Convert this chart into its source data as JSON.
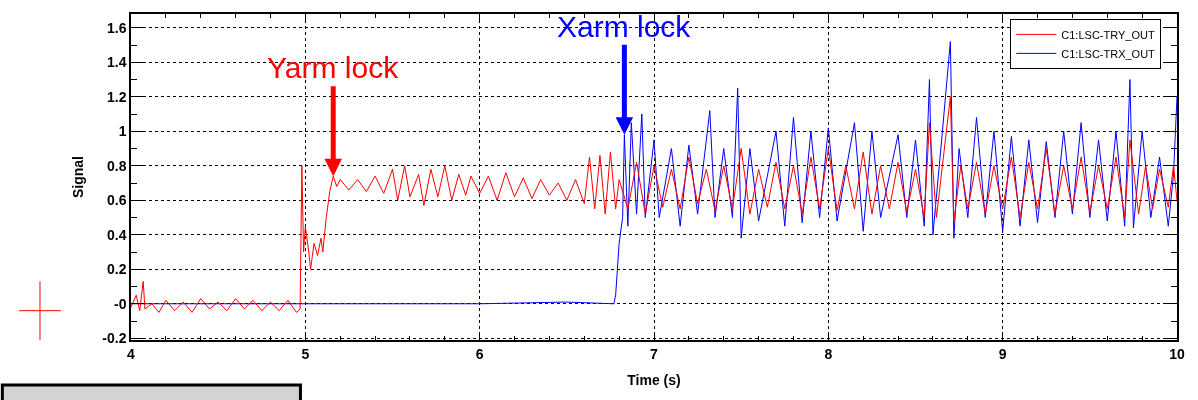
{
  "chart_data": {
    "type": "line",
    "xlabel": "Time (s)",
    "ylabel": "Signal",
    "xlim": [
      4,
      10
    ],
    "xticks": [
      4,
      5,
      6,
      7,
      8,
      9,
      10
    ],
    "ylim": [
      -0.21,
      1.68
    ],
    "yticks": [
      -0.2,
      {
        "value": 0,
        "label": "-0"
      },
      0.2,
      0.4,
      0.6,
      0.8,
      1,
      1.2,
      1.4,
      1.6
    ],
    "grid": true,
    "legend": "top right",
    "line_style": "solid",
    "marker": "none",
    "annotations": [
      {
        "text": "Yarm lock",
        "x": 5.16,
        "y": 0.74
      },
      {
        "text": "Xarm lock",
        "x": 6.83,
        "y": 0.98
      }
    ],
    "series": [
      {
        "name": "C1:LSC-TRY_OUT",
        "color": "#ff0000",
        "x": [
          4.0,
          4.03,
          4.05,
          4.07,
          4.08,
          4.12,
          4.16,
          4.2,
          4.25,
          4.3,
          4.35,
          4.4,
          4.45,
          4.5,
          4.55,
          4.6,
          4.65,
          4.7,
          4.75,
          4.8,
          4.85,
          4.9,
          4.95,
          4.97,
          4.98,
          4.99,
          5.0,
          5.02,
          5.03,
          5.05,
          5.07,
          5.09,
          5.1,
          5.12,
          5.14,
          5.16,
          5.18,
          5.2,
          5.25,
          5.3,
          5.35,
          5.4,
          5.45,
          5.5,
          5.53,
          5.57,
          5.6,
          5.65,
          5.68,
          5.72,
          5.76,
          5.8,
          5.84,
          5.88,
          5.92,
          5.95,
          6.0,
          6.05,
          6.1,
          6.15,
          6.2,
          6.25,
          6.3,
          6.35,
          6.4,
          6.45,
          6.5,
          6.55,
          6.6,
          6.63,
          6.66,
          6.69,
          6.72,
          6.75,
          6.78,
          6.8,
          6.85,
          6.9,
          6.95,
          7.0,
          7.05,
          7.1,
          7.15,
          7.2,
          7.25,
          7.3,
          7.35,
          7.4,
          7.45,
          7.5,
          7.55,
          7.6,
          7.65,
          7.7,
          7.75,
          7.8,
          7.85,
          7.9,
          7.95,
          8.0,
          8.05,
          8.1,
          8.15,
          8.2,
          8.25,
          8.3,
          8.35,
          8.4,
          8.45,
          8.5,
          8.55,
          8.58,
          8.62,
          8.66,
          8.7,
          8.72,
          8.76,
          8.8,
          8.85,
          8.9,
          8.95,
          9.0,
          9.05,
          9.1,
          9.15,
          9.2,
          9.25,
          9.3,
          9.35,
          9.4,
          9.45,
          9.5,
          9.55,
          9.6,
          9.65,
          9.7,
          9.73,
          9.78,
          9.82,
          9.86,
          9.9,
          9.95,
          9.98,
          10.0
        ],
        "values": [
          -0.02,
          0.05,
          -0.04,
          0.13,
          -0.03,
          0.0,
          -0.05,
          0.02,
          -0.04,
          0.01,
          -0.05,
          0.03,
          -0.03,
          0.01,
          -0.04,
          0.03,
          -0.03,
          0.02,
          -0.04,
          0.01,
          -0.04,
          0.02,
          -0.05,
          -0.03,
          0.8,
          0.3,
          0.45,
          0.3,
          0.2,
          0.35,
          0.28,
          0.38,
          0.3,
          0.5,
          0.65,
          0.74,
          0.68,
          0.72,
          0.66,
          0.72,
          0.65,
          0.74,
          0.64,
          0.78,
          0.6,
          0.8,
          0.62,
          0.75,
          0.57,
          0.78,
          0.62,
          0.8,
          0.6,
          0.75,
          0.63,
          0.74,
          0.64,
          0.74,
          0.6,
          0.76,
          0.62,
          0.73,
          0.61,
          0.72,
          0.63,
          0.7,
          0.6,
          0.72,
          0.58,
          0.85,
          0.55,
          0.86,
          0.52,
          0.88,
          0.55,
          0.72,
          0.55,
          0.82,
          0.52,
          0.8,
          0.56,
          0.78,
          0.55,
          0.85,
          0.58,
          0.78,
          0.54,
          0.8,
          0.55,
          0.9,
          0.52,
          0.78,
          0.56,
          0.82,
          0.55,
          0.8,
          0.52,
          0.85,
          0.55,
          0.9,
          0.54,
          0.8,
          0.55,
          0.88,
          0.52,
          0.8,
          0.55,
          0.82,
          0.53,
          0.78,
          0.5,
          1.05,
          0.5,
          0.85,
          1.2,
          0.48,
          0.8,
          0.55,
          0.82,
          0.52,
          0.8,
          0.55,
          0.85,
          0.5,
          0.82,
          0.55,
          0.9,
          0.52,
          0.8,
          0.55,
          0.85,
          0.53,
          0.8,
          0.55,
          0.85,
          0.5,
          0.95,
          0.52,
          0.8,
          0.55,
          0.78,
          0.56,
          0.8,
          0.6
        ]
      },
      {
        "name": "C1:LSC-TRX_OUT",
        "color": "#0000ff",
        "x": [
          4,
          5,
          6,
          6.5,
          6.77,
          6.78,
          6.8,
          6.82,
          6.83,
          6.85,
          6.87,
          6.9,
          6.93,
          6.95,
          7.0,
          7.03,
          7.1,
          7.15,
          7.2,
          7.25,
          7.32,
          7.35,
          7.4,
          7.45,
          7.48,
          7.5,
          7.55,
          7.6,
          7.7,
          7.75,
          7.8,
          7.85,
          7.9,
          7.95,
          8.0,
          8.05,
          8.15,
          8.2,
          8.25,
          8.3,
          8.4,
          8.45,
          8.5,
          8.55,
          8.58,
          8.6,
          8.65,
          8.7,
          8.72,
          8.75,
          8.8,
          8.85,
          8.9,
          8.95,
          9.0,
          9.05,
          9.1,
          9.15,
          9.2,
          9.25,
          9.3,
          9.35,
          9.4,
          9.45,
          9.5,
          9.55,
          9.6,
          9.65,
          9.7,
          9.73,
          9.75,
          9.8,
          9.85,
          9.9,
          9.95,
          9.98,
          10.0
        ],
        "values": [
          0,
          0,
          0,
          0.01,
          0,
          0.05,
          0.35,
          0.5,
          0.98,
          0.45,
          1.05,
          0.52,
          1.1,
          0.5,
          0.95,
          0.5,
          0.9,
          0.45,
          0.92,
          0.52,
          1.12,
          0.5,
          0.9,
          0.5,
          1.25,
          0.38,
          0.9,
          0.48,
          1.0,
          0.45,
          1.08,
          0.47,
          1.0,
          0.5,
          1.02,
          0.48,
          1.05,
          0.42,
          1.0,
          0.5,
          0.98,
          0.5,
          0.95,
          0.45,
          1.3,
          0.4,
          0.95,
          1.52,
          0.38,
          0.9,
          0.5,
          1.08,
          0.5,
          1.0,
          0.42,
          0.97,
          0.45,
          0.95,
          0.47,
          0.94,
          0.5,
          1.0,
          0.52,
          1.05,
          0.5,
          0.95,
          0.48,
          1.0,
          0.45,
          1.3,
          0.44,
          1.0,
          0.5,
          0.85,
          0.45,
          0.75,
          1.2
        ]
      }
    ]
  }
}
